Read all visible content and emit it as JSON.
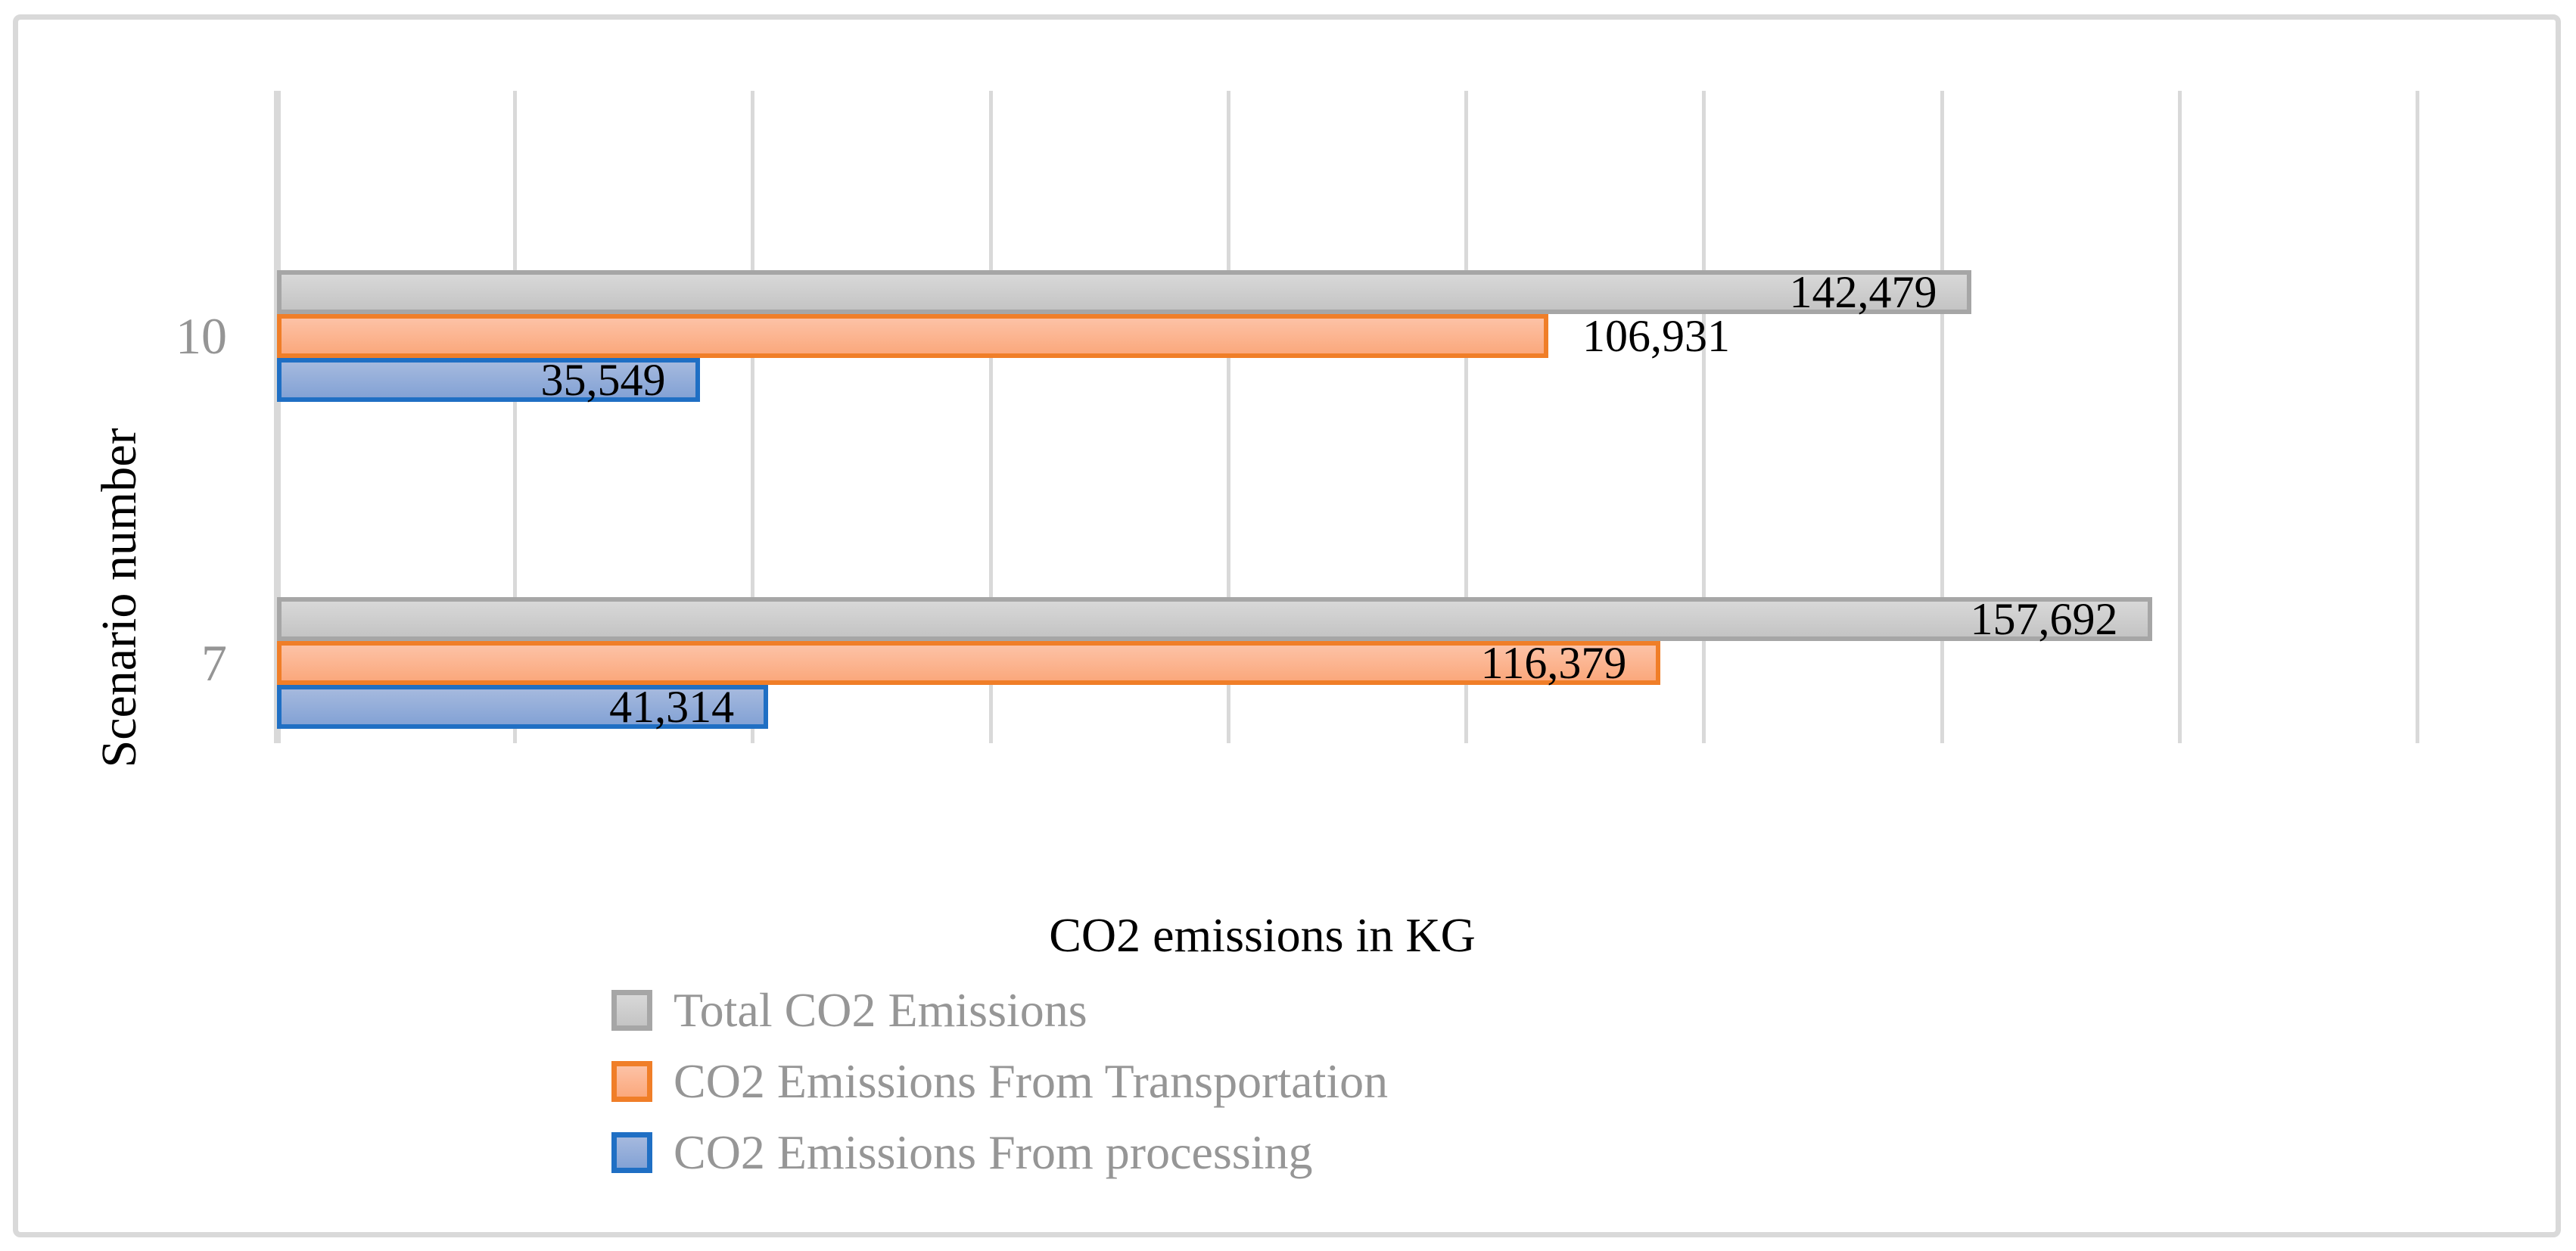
{
  "chart_data": {
    "type": "bar",
    "orientation": "horizontal",
    "xlabel": "CO2 emissions in KG",
    "ylabel": "Scenario number",
    "categories": [
      "10",
      "7"
    ],
    "series": [
      {
        "name": "Total CO2 Emissions",
        "values": [
          142479,
          157692
        ],
        "labels": [
          "142,479",
          "157,692"
        ],
        "label_placement": [
          "inside-end",
          "inside-end"
        ],
        "border_color": "#a6a6a6",
        "fill_top": "#d8d8d8",
        "fill_bottom": "#c4c4c4"
      },
      {
        "name": "CO2 Emissions From Transportation",
        "values": [
          106931,
          116379
        ],
        "labels": [
          "106,931",
          "116,379"
        ],
        "label_placement": [
          "outside-end",
          "inside-end"
        ],
        "border_color": "#f07e28",
        "fill_top": "#fcc2a6",
        "fill_bottom": "#fba87c"
      },
      {
        "name": "CO2 Emissions From processing",
        "values": [
          35549,
          41314
        ],
        "labels": [
          "35,549",
          "41,314"
        ],
        "label_placement": [
          "inside-end",
          "inside-end"
        ],
        "border_color": "#1f6fc4",
        "fill_top": "#a5b9de",
        "fill_bottom": "#83a2d5"
      }
    ],
    "xlim": [
      0,
      180000
    ],
    "gridline_interval": 20000,
    "grid": true,
    "gridline_color": "#d9d9d9",
    "legend_position": "bottom-left",
    "legend_entries": [
      "Total CO2 Emissions",
      "CO2 Emissions From Transportation",
      "CO2 Emissions From processing"
    ]
  }
}
